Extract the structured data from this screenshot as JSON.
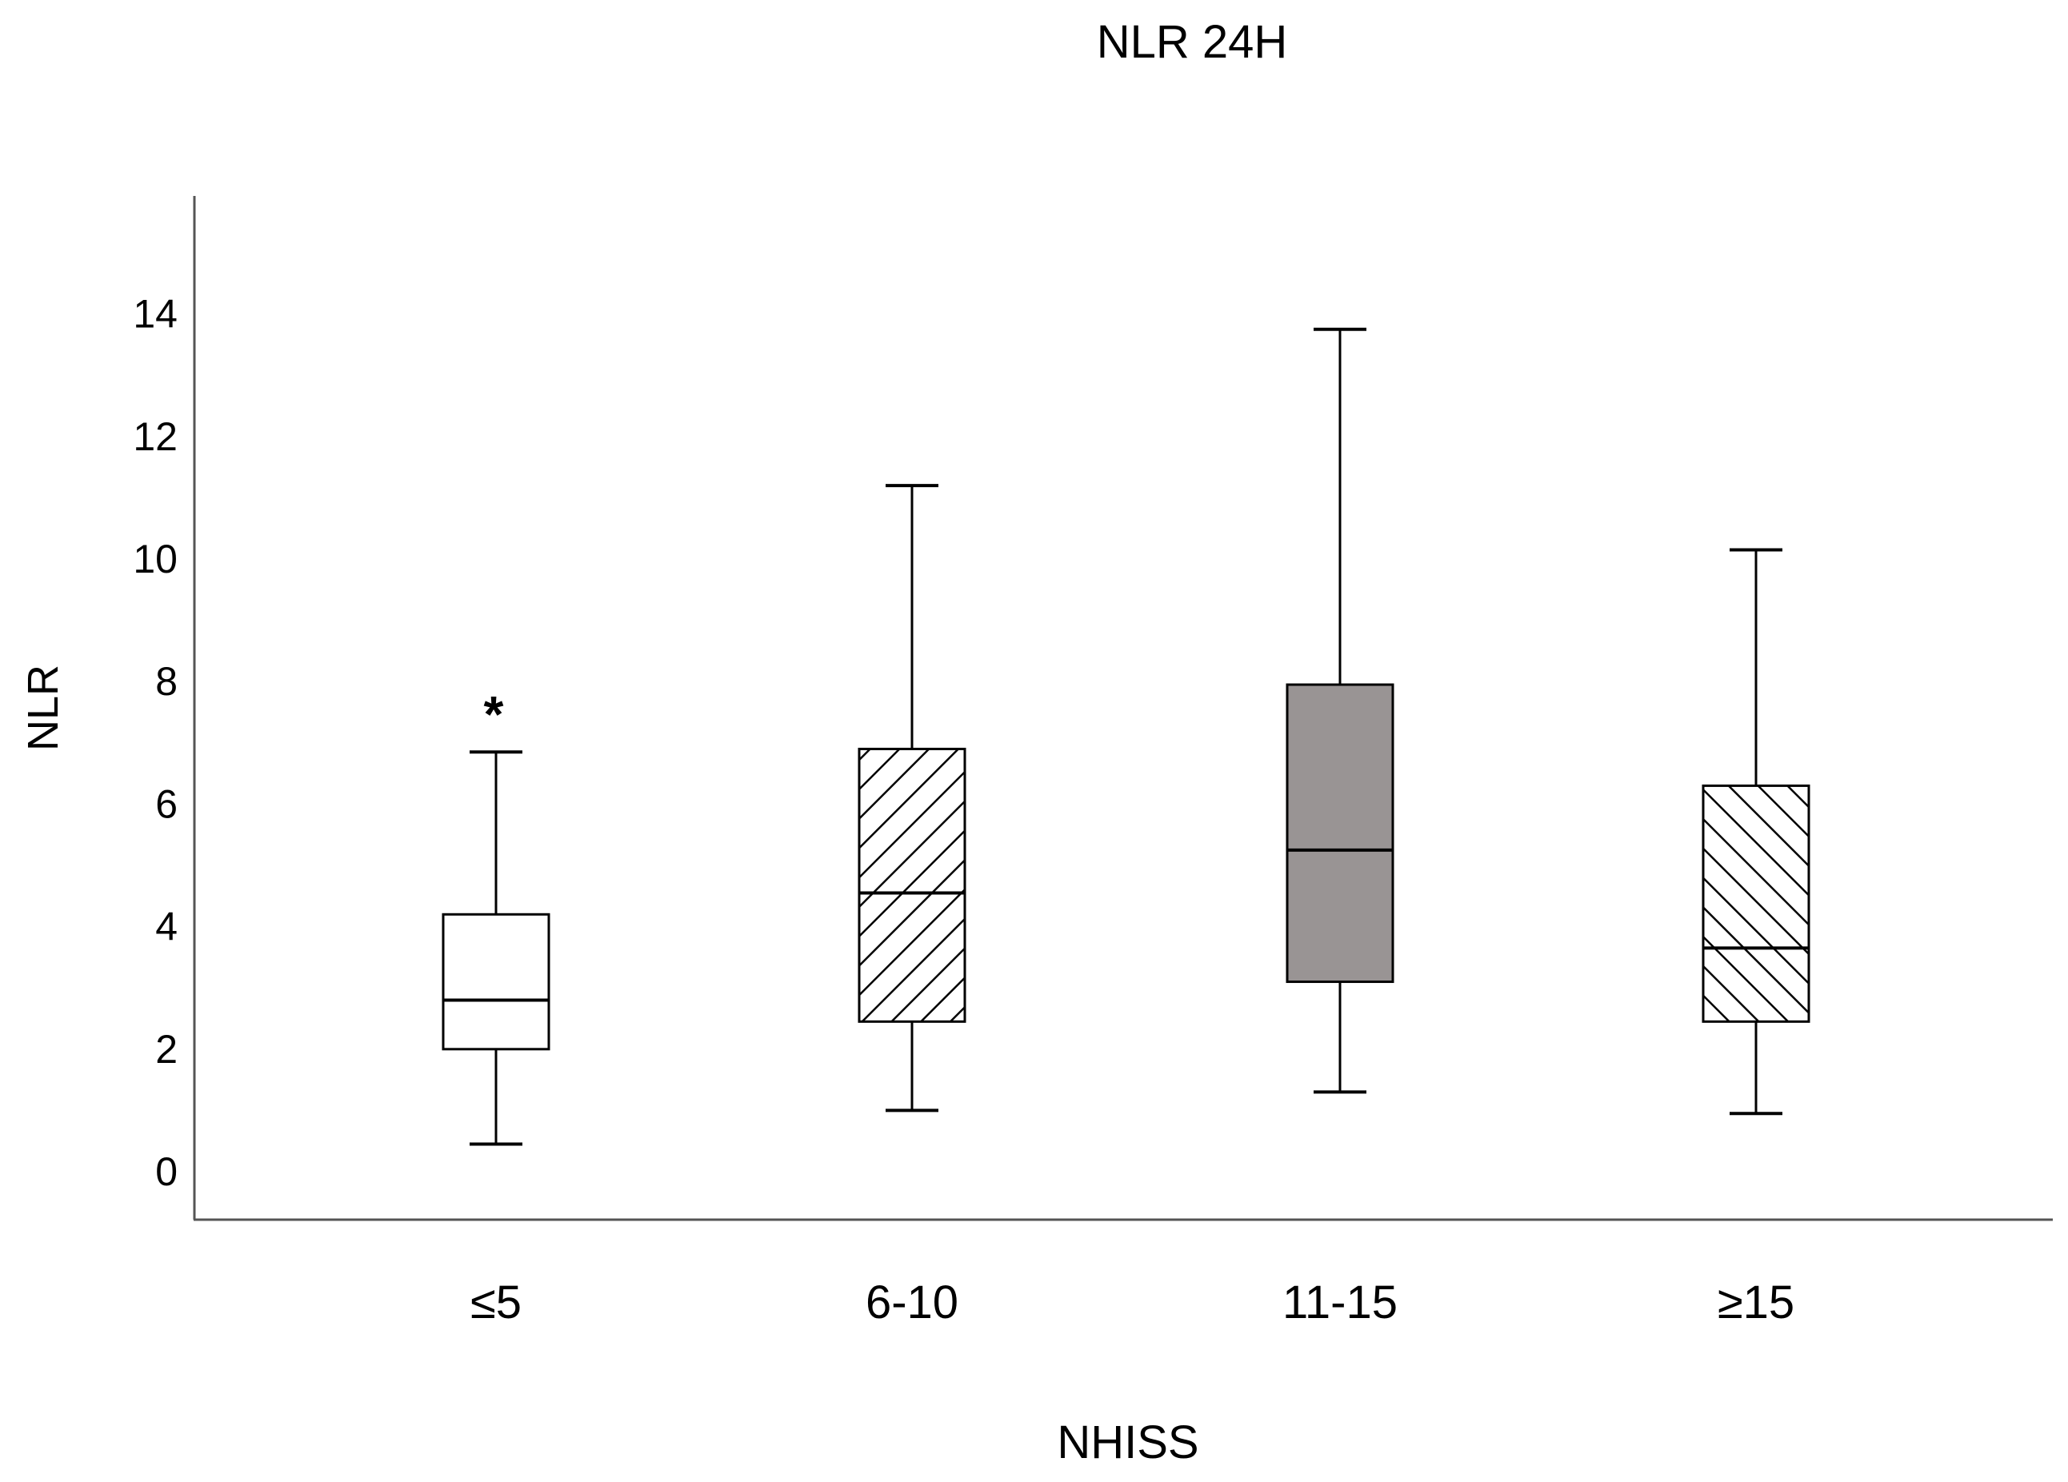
{
  "chart_data": {
    "type": "boxplot",
    "title": "NLR 24H",
    "xlabel": "NHISS",
    "ylabel": "NLR",
    "ylim": [
      -0.75,
      16
    ],
    "yticks": [
      "0",
      "2",
      "4",
      "6",
      "8",
      "10",
      "12",
      "14"
    ],
    "grid": false,
    "categories": [
      "≤5",
      "6-10",
      "11-15",
      "≥15"
    ],
    "boxes": [
      {
        "name": "≤5",
        "whisker_low": 0.45,
        "q1": 2.0,
        "median": 2.8,
        "q3": 4.2,
        "whisker_high": 6.85,
        "outliers": [
          7.7
        ],
        "outlier_symbol": "*",
        "fill": "#ffffff",
        "pattern": "none"
      },
      {
        "name": "6-10",
        "whisker_low": 1.0,
        "q1": 2.45,
        "median": 4.55,
        "q3": 6.9,
        "whisker_high": 11.2,
        "outliers": [],
        "fill": "#ffffff",
        "pattern": "hatch-down"
      },
      {
        "name": "11-15",
        "whisker_low": 1.3,
        "q1": 3.1,
        "median": 5.25,
        "q3": 7.95,
        "whisker_high": 13.75,
        "outliers": [],
        "fill": "#999494",
        "pattern": "none"
      },
      {
        "name": "≥15",
        "whisker_low": 0.95,
        "q1": 2.45,
        "median": 3.65,
        "q3": 6.3,
        "whisker_high": 10.15,
        "outliers": [],
        "fill": "#ffffff",
        "pattern": "hatch-up"
      }
    ]
  }
}
